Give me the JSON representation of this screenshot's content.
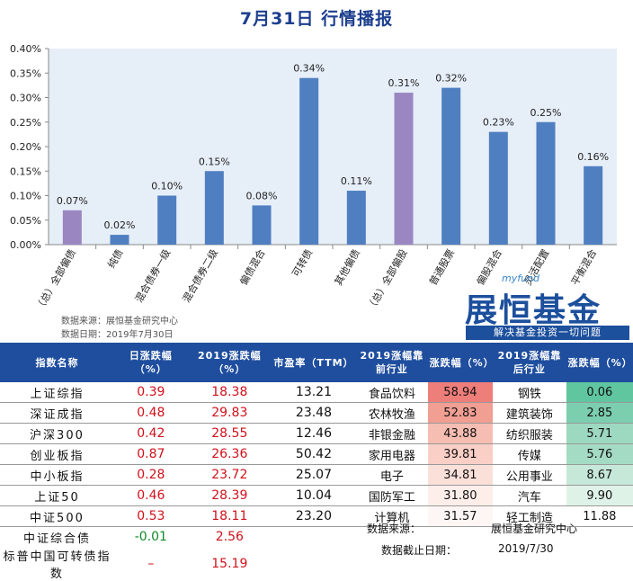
{
  "title": "7月31日  行情播报",
  "chart_data": {
    "type": "bar",
    "categories": [
      "（总）全部偏债",
      "纯债",
      "混合债券一级",
      "混合债券二级",
      "偏债混合",
      "可转债",
      "其他偏债",
      "（总）全部偏股",
      "普通股票",
      "偏股混合",
      "灵活配置",
      "平衡混合"
    ],
    "values": [
      0.07,
      0.02,
      0.1,
      0.15,
      0.08,
      0.34,
      0.11,
      0.31,
      0.32,
      0.23,
      0.25,
      0.16
    ],
    "value_labels": [
      "0.07%",
      "0.02%",
      "0.10%",
      "0.15%",
      "0.08%",
      "0.34%",
      "0.11%",
      "0.31%",
      "0.32%",
      "0.23%",
      "0.25%",
      "0.16%"
    ],
    "highlighted": [
      true,
      false,
      false,
      false,
      false,
      false,
      false,
      true,
      false,
      false,
      false,
      false
    ],
    "ylim": [
      0,
      0.4
    ],
    "yticks": [
      0,
      0.05,
      0.1,
      0.15,
      0.2,
      0.25,
      0.3,
      0.35,
      0.4
    ],
    "ytick_labels": [
      "0.00%",
      "0.05%",
      "0.10%",
      "0.15%",
      "0.20%",
      "0.25%",
      "0.30%",
      "0.35%",
      "0.40%"
    ],
    "colors": {
      "bar": "#4f7fc1",
      "highlight": "#9a87c2",
      "plot_bg": "#e6eef8"
    }
  },
  "source_line": "数据来源：展恒基金研究中心",
  "date_line": "数据日期：2019年7月30日",
  "logo": {
    "sub": "myfund",
    "main": "展恒基金",
    "slogan": "解决基金投资一切问题"
  },
  "index_table": {
    "headers": [
      "指数名称",
      "日涨跌幅（%）",
      "2019涨跌幅（%）",
      "市盈率（TTM）"
    ],
    "rows": [
      {
        "name": "上证综指",
        "day": "0.39",
        "ytd": "18.38",
        "pe": "13.21",
        "day_color": "red"
      },
      {
        "name": "深证成指",
        "day": "0.48",
        "ytd": "29.83",
        "pe": "23.48",
        "day_color": "red"
      },
      {
        "name": "沪深300",
        "day": "0.42",
        "ytd": "28.55",
        "pe": "12.46",
        "day_color": "red"
      },
      {
        "name": "创业板指",
        "day": "0.87",
        "ytd": "26.36",
        "pe": "50.42",
        "day_color": "red"
      },
      {
        "name": "中小板指",
        "day": "0.28",
        "ytd": "23.72",
        "pe": "25.07",
        "day_color": "red"
      },
      {
        "name": "上证50",
        "day": "0.46",
        "ytd": "28.39",
        "pe": "10.04",
        "day_color": "red"
      },
      {
        "name": "中证500",
        "day": "0.53",
        "ytd": "18.11",
        "pe": "23.20",
        "day_color": "red"
      },
      {
        "name": "中证综合债",
        "day": "-0.01",
        "ytd": "2.56",
        "pe": "",
        "day_color": "green"
      },
      {
        "name": "标普中国可转债指数",
        "day": "–",
        "ytd": "15.19",
        "pe": "",
        "day_color": "red"
      }
    ]
  },
  "industry_table": {
    "headers": [
      "2019涨幅靠前行业",
      "涨跌幅（%）",
      "2019涨幅靠后行业",
      "涨跌幅（%）"
    ],
    "rows": [
      {
        "top": "食品饮料",
        "top_v": "58.94",
        "bot": "钢铁",
        "bot_v": "0.06",
        "top_c": "#ee7e7a",
        "bot_c": "#5fc6a0"
      },
      {
        "top": "农林牧渔",
        "top_v": "52.83",
        "bot": "建筑装饰",
        "bot_v": "2.85",
        "top_c": "#f19e93",
        "bot_c": "#7bcfaf"
      },
      {
        "top": "非银金融",
        "top_v": "43.88",
        "bot": "纺织服装",
        "bot_v": "5.71",
        "top_c": "#f6bdb2",
        "bot_c": "#9dd8c0"
      },
      {
        "top": "家用电器",
        "top_v": "39.81",
        "bot": "传媒",
        "bot_v": "5.76",
        "top_c": "#f9cfc6",
        "bot_c": "#a4dbc4"
      },
      {
        "top": "电子",
        "top_v": "34.81",
        "bot": "公用事业",
        "bot_v": "8.67",
        "top_c": "#fbe0da",
        "bot_c": "#c6e8d8"
      },
      {
        "top": "国防军工",
        "top_v": "31.80",
        "bot": "汽车",
        "bot_v": "9.90",
        "top_c": "#fdeeea",
        "bot_c": "#dff2e8"
      },
      {
        "top": "计算机",
        "top_v": "31.57",
        "bot": "轻工制造",
        "bot_v": "11.88",
        "top_c": "#fef6f4",
        "bot_c": "#ffffff"
      }
    ]
  },
  "footer": {
    "src_label": "数据来源：",
    "src_value": "展恒基金研究中心",
    "date_label": "数据截止日期：",
    "date_value": "2019/7/30"
  }
}
